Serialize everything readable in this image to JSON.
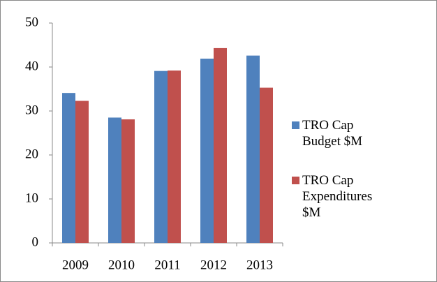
{
  "chart_data": {
    "type": "bar",
    "categories": [
      "2009",
      "2010",
      "2011",
      "2012",
      "2013"
    ],
    "series": [
      {
        "name": "TRO Cap Budget $M",
        "color": "#4f81bd",
        "values": [
          34.1,
          28.5,
          39.1,
          41.9,
          42.6
        ]
      },
      {
        "name": "TRO Cap Expenditures $M",
        "color": "#c0504d",
        "values": [
          32.3,
          28.1,
          39.2,
          44.3,
          35.3
        ]
      }
    ],
    "ylim": [
      0,
      50
    ],
    "yticks": [
      0,
      10,
      20,
      30,
      40,
      50
    ],
    "grid": false,
    "legend": "right"
  }
}
